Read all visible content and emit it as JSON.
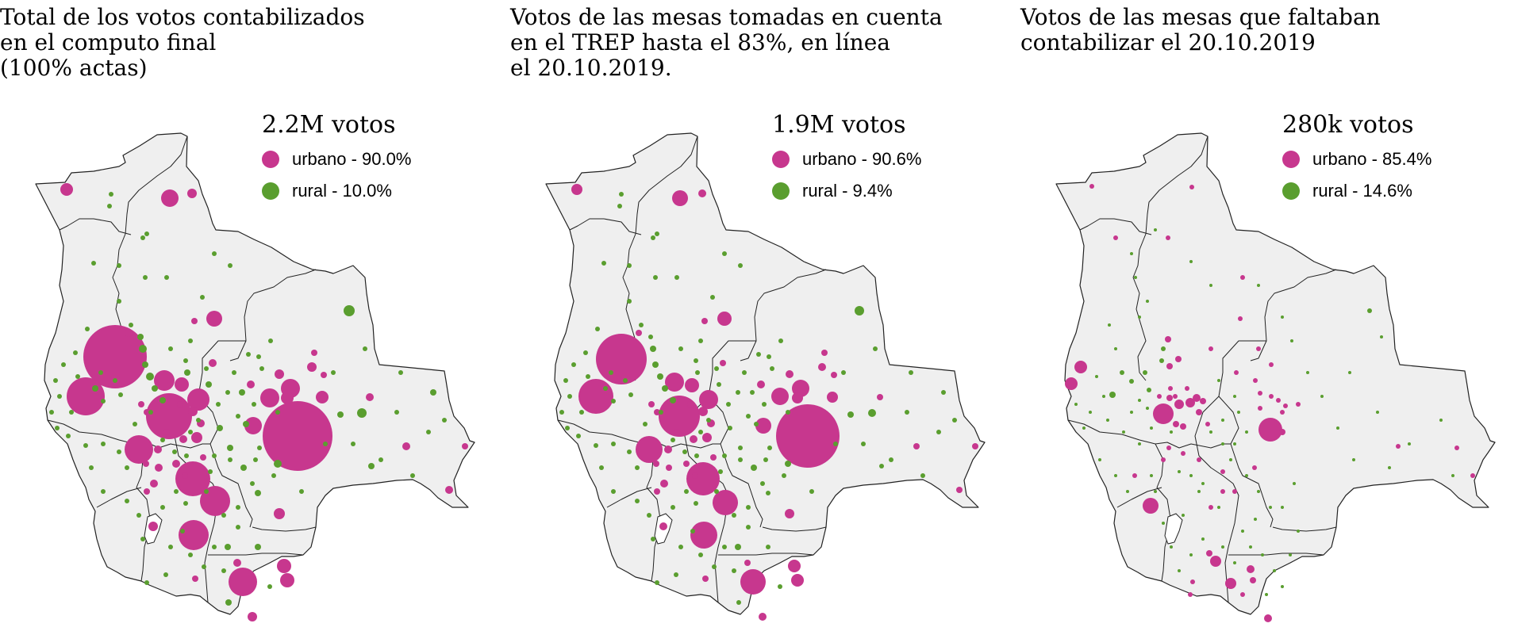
{
  "colors": {
    "urban": "#c7378e",
    "rural": "#5a9e2f",
    "land": "#efefef",
    "border": "#222222"
  },
  "panels": [
    {
      "title": "Total de los votos contabilizados\nen el computo final\n(100% actas)",
      "total": "2.2M votos",
      "legend": [
        {
          "category": "urbano",
          "label": "urbano - 90.0%"
        },
        {
          "category": "rural",
          "label": "rural - 10.0%"
        }
      ]
    },
    {
      "title": "Votos de las mesas tomadas en cuenta\nen el TREP hasta el 83%, en línea\nel 20.10.2019.",
      "total": "1.9M votos",
      "legend": [
        {
          "category": "urbano",
          "label": "urbano - 90.6%"
        },
        {
          "category": "rural",
          "label": "rural - 9.4%"
        }
      ]
    },
    {
      "title": "Votos de las mesas que faltaban\ncontabilizar el 20.10.2019",
      "total": "280k votos",
      "legend": [
        {
          "category": "urbano",
          "label": "urbano - 85.4%"
        },
        {
          "category": "rural",
          "label": "rural - 14.6%"
        }
      ]
    }
  ]
}
